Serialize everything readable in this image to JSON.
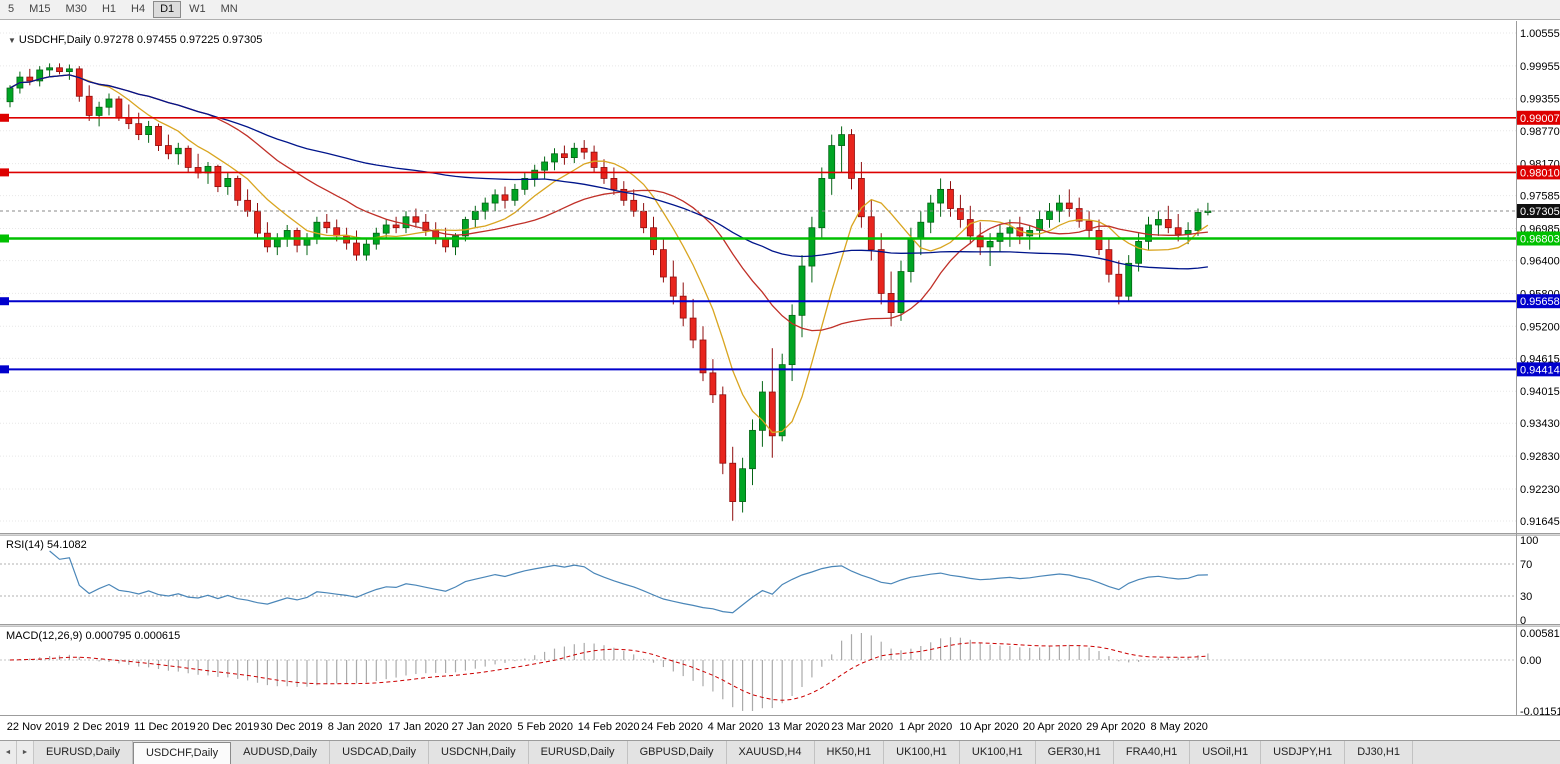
{
  "toolbar": {
    "timeframes": [
      "5",
      "M15",
      "M30",
      "H1",
      "H4",
      "D1",
      "W1",
      "MN"
    ],
    "active": "D1"
  },
  "icons": {
    "title_arrow": "▼",
    "tab_scroll_left": "◄",
    "tab_scroll_right": "►"
  },
  "chart_data": {
    "type": "candlestick",
    "symbol_title": "USDCHF,Daily",
    "ohlc_text": "0.97278 0.97455 0.97225 0.97305",
    "price_ticks": [
      "1.00555",
      "0.99955",
      "0.99355",
      "0.98770",
      "0.98170",
      "0.97585",
      "0.96985",
      "0.96400",
      "0.95800",
      "0.95200",
      "0.94615",
      "0.94015",
      "0.93430",
      "0.92830",
      "0.92230",
      "0.91645"
    ],
    "colors": {
      "up": "#00a524",
      "up_stroke": "#046414",
      "down": "#e8251d",
      "down_stroke": "#8f0e0e",
      "grid": "#e7e7e7"
    },
    "hlines": [
      {
        "value": 0.99007,
        "label": "0.99007",
        "color": "#dd0000",
        "width": 1.6
      },
      {
        "value": 0.9801,
        "label": "0.98010",
        "color": "#dd0000",
        "width": 1.6
      },
      {
        "value": 0.96803,
        "label": "0.96803",
        "color": "#00c000",
        "width": 2.4
      },
      {
        "value": 0.95658,
        "label": "0.95658",
        "color": "#0000cc",
        "width": 2
      },
      {
        "value": 0.94414,
        "label": "0.94414",
        "color": "#0000cc",
        "width": 2
      }
    ],
    "current_price": {
      "value": 0.97305,
      "label": "0.97305",
      "color": "#101010"
    },
    "moving_averages": [
      {
        "period": 8,
        "color": "#d9a520"
      },
      {
        "period": 21,
        "color": "#c03028"
      },
      {
        "period": 55,
        "color": "#00158b"
      }
    ],
    "candles": [
      [
        0.993,
        0.996,
        0.992,
        0.9955
      ],
      [
        0.9955,
        0.9985,
        0.9945,
        0.9975
      ],
      [
        0.9975,
        0.999,
        0.996,
        0.9968
      ],
      [
        0.9968,
        0.9995,
        0.9958,
        0.9988
      ],
      [
        0.9988,
        1.0,
        0.9975,
        0.9992
      ],
      [
        0.9992,
        1.0,
        0.998,
        0.9985
      ],
      [
        0.9985,
        0.9998,
        0.997,
        0.999
      ],
      [
        0.999,
        0.9995,
        0.993,
        0.994
      ],
      [
        0.994,
        0.996,
        0.9895,
        0.9905
      ],
      [
        0.9905,
        0.993,
        0.9885,
        0.992
      ],
      [
        0.992,
        0.9945,
        0.9905,
        0.9935
      ],
      [
        0.9935,
        0.994,
        0.9895,
        0.99
      ],
      [
        0.99,
        0.9925,
        0.988,
        0.989
      ],
      [
        0.989,
        0.991,
        0.986,
        0.987
      ],
      [
        0.987,
        0.9895,
        0.9855,
        0.9885
      ],
      [
        0.9885,
        0.989,
        0.984,
        0.985
      ],
      [
        0.985,
        0.987,
        0.9825,
        0.9835
      ],
      [
        0.9835,
        0.9855,
        0.9815,
        0.9845
      ],
      [
        0.9845,
        0.985,
        0.98,
        0.981
      ],
      [
        0.981,
        0.9835,
        0.979,
        0.98
      ],
      [
        0.98,
        0.982,
        0.978,
        0.9812
      ],
      [
        0.9812,
        0.9815,
        0.9765,
        0.9775
      ],
      [
        0.9775,
        0.98,
        0.976,
        0.979
      ],
      [
        0.979,
        0.9795,
        0.974,
        0.975
      ],
      [
        0.975,
        0.977,
        0.972,
        0.973
      ],
      [
        0.973,
        0.9745,
        0.968,
        0.969
      ],
      [
        0.969,
        0.971,
        0.9655,
        0.9665
      ],
      [
        0.9665,
        0.969,
        0.965,
        0.968
      ],
      [
        0.968,
        0.9705,
        0.9665,
        0.9695
      ],
      [
        0.9695,
        0.97,
        0.9655,
        0.9668
      ],
      [
        0.9668,
        0.969,
        0.965,
        0.968
      ],
      [
        0.968,
        0.972,
        0.967,
        0.971
      ],
      [
        0.971,
        0.9725,
        0.969,
        0.97
      ],
      [
        0.97,
        0.9715,
        0.9675,
        0.9685
      ],
      [
        0.9685,
        0.97,
        0.966,
        0.9672
      ],
      [
        0.9672,
        0.9695,
        0.964,
        0.965
      ],
      [
        0.965,
        0.968,
        0.964,
        0.967
      ],
      [
        0.967,
        0.97,
        0.966,
        0.969
      ],
      [
        0.969,
        0.9715,
        0.968,
        0.9705
      ],
      [
        0.9705,
        0.972,
        0.969,
        0.97
      ],
      [
        0.97,
        0.973,
        0.969,
        0.972
      ],
      [
        0.972,
        0.9735,
        0.97,
        0.971
      ],
      [
        0.971,
        0.9725,
        0.9685,
        0.9695
      ],
      [
        0.9695,
        0.971,
        0.967,
        0.968
      ],
      [
        0.968,
        0.97,
        0.9655,
        0.9665
      ],
      [
        0.9665,
        0.969,
        0.965,
        0.9685
      ],
      [
        0.9685,
        0.972,
        0.9675,
        0.9715
      ],
      [
        0.9715,
        0.974,
        0.97,
        0.973
      ],
      [
        0.973,
        0.9755,
        0.9715,
        0.9745
      ],
      [
        0.9745,
        0.977,
        0.973,
        0.976
      ],
      [
        0.976,
        0.9775,
        0.9735,
        0.975
      ],
      [
        0.975,
        0.978,
        0.974,
        0.977
      ],
      [
        0.977,
        0.98,
        0.976,
        0.979
      ],
      [
        0.979,
        0.9815,
        0.9775,
        0.9805
      ],
      [
        0.9805,
        0.983,
        0.979,
        0.982
      ],
      [
        0.982,
        0.9845,
        0.9805,
        0.9835
      ],
      [
        0.9835,
        0.985,
        0.9815,
        0.9828
      ],
      [
        0.9828,
        0.9855,
        0.9818,
        0.9845
      ],
      [
        0.9845,
        0.986,
        0.9825,
        0.9838
      ],
      [
        0.9838,
        0.985,
        0.98,
        0.981
      ],
      [
        0.981,
        0.9825,
        0.978,
        0.979
      ],
      [
        0.979,
        0.981,
        0.976,
        0.977
      ],
      [
        0.977,
        0.9785,
        0.974,
        0.975
      ],
      [
        0.975,
        0.977,
        0.972,
        0.973
      ],
      [
        0.973,
        0.9745,
        0.969,
        0.97
      ],
      [
        0.97,
        0.972,
        0.965,
        0.966
      ],
      [
        0.966,
        0.968,
        0.96,
        0.961
      ],
      [
        0.961,
        0.964,
        0.956,
        0.9575
      ],
      [
        0.9575,
        0.96,
        0.952,
        0.9535
      ],
      [
        0.9535,
        0.957,
        0.948,
        0.9495
      ],
      [
        0.9495,
        0.952,
        0.942,
        0.9435
      ],
      [
        0.9435,
        0.946,
        0.938,
        0.9395
      ],
      [
        0.9395,
        0.941,
        0.925,
        0.927
      ],
      [
        0.927,
        0.93,
        0.9165,
        0.92
      ],
      [
        0.92,
        0.928,
        0.918,
        0.926
      ],
      [
        0.926,
        0.935,
        0.923,
        0.933
      ],
      [
        0.933,
        0.942,
        0.93,
        0.94
      ],
      [
        0.94,
        0.948,
        0.928,
        0.932
      ],
      [
        0.932,
        0.947,
        0.931,
        0.945
      ],
      [
        0.945,
        0.956,
        0.942,
        0.954
      ],
      [
        0.954,
        0.965,
        0.95,
        0.963
      ],
      [
        0.963,
        0.972,
        0.96,
        0.97
      ],
      [
        0.97,
        0.981,
        0.968,
        0.979
      ],
      [
        0.979,
        0.987,
        0.976,
        0.985
      ],
      [
        0.985,
        0.9885,
        0.98,
        0.987
      ],
      [
        0.987,
        0.988,
        0.977,
        0.979
      ],
      [
        0.979,
        0.982,
        0.97,
        0.972
      ],
      [
        0.972,
        0.975,
        0.964,
        0.966
      ],
      [
        0.966,
        0.969,
        0.956,
        0.958
      ],
      [
        0.958,
        0.962,
        0.952,
        0.9545
      ],
      [
        0.9545,
        0.964,
        0.953,
        0.962
      ],
      [
        0.962,
        0.97,
        0.96,
        0.968
      ],
      [
        0.968,
        0.973,
        0.965,
        0.971
      ],
      [
        0.971,
        0.976,
        0.969,
        0.9745
      ],
      [
        0.9745,
        0.979,
        0.972,
        0.977
      ],
      [
        0.977,
        0.9785,
        0.972,
        0.9735
      ],
      [
        0.9735,
        0.976,
        0.97,
        0.9715
      ],
      [
        0.9715,
        0.974,
        0.967,
        0.9685
      ],
      [
        0.9685,
        0.971,
        0.965,
        0.9665
      ],
      [
        0.9665,
        0.969,
        0.963,
        0.9675
      ],
      [
        0.9675,
        0.9705,
        0.9655,
        0.969
      ],
      [
        0.969,
        0.9715,
        0.9665,
        0.97
      ],
      [
        0.97,
        0.972,
        0.967,
        0.9685
      ],
      [
        0.9685,
        0.9705,
        0.966,
        0.9695
      ],
      [
        0.9695,
        0.973,
        0.968,
        0.9715
      ],
      [
        0.9715,
        0.9745,
        0.97,
        0.973
      ],
      [
        0.973,
        0.976,
        0.971,
        0.9745
      ],
      [
        0.9745,
        0.977,
        0.972,
        0.9735
      ],
      [
        0.9735,
        0.9755,
        0.97,
        0.9712
      ],
      [
        0.9712,
        0.973,
        0.968,
        0.9695
      ],
      [
        0.9695,
        0.9715,
        0.965,
        0.966
      ],
      [
        0.966,
        0.968,
        0.96,
        0.9615
      ],
      [
        0.9615,
        0.964,
        0.956,
        0.9575
      ],
      [
        0.9575,
        0.965,
        0.9565,
        0.9635
      ],
      [
        0.9635,
        0.969,
        0.962,
        0.9675
      ],
      [
        0.9675,
        0.972,
        0.966,
        0.9705
      ],
      [
        0.9705,
        0.973,
        0.9685,
        0.9715
      ],
      [
        0.9715,
        0.974,
        0.969,
        0.97
      ],
      [
        0.97,
        0.9725,
        0.9675,
        0.9688
      ],
      [
        0.9688,
        0.971,
        0.967,
        0.9695
      ],
      [
        0.9695,
        0.9735,
        0.9685,
        0.97278
      ],
      [
        0.97278,
        0.97455,
        0.97225,
        0.97305
      ]
    ],
    "rsi": {
      "label": "RSI(14) 54.1082",
      "period": 14,
      "color": "#4a86b8",
      "levels": [
        "100",
        "70",
        "30",
        "0"
      ]
    },
    "macd": {
      "label": "MACD(12,26,9) 0.000795 0.000615",
      "fast": 12,
      "slow": 26,
      "signal": 9,
      "axis_labels": [
        "0.005818",
        "0.00",
        "-0.011510"
      ],
      "hist_color": "#aaaaaa",
      "signal_color": "#cc0000"
    },
    "date_labels": [
      "22 Nov 2019",
      "2 Dec 2019",
      "11 Dec 2019",
      "20 Dec 2019",
      "30 Dec 2019",
      "8 Jan 2020",
      "17 Jan 2020",
      "27 Jan 2020",
      "5 Feb 2020",
      "14 Feb 2020",
      "24 Feb 2020",
      "4 Mar 2020",
      "13 Mar 2020",
      "23 Mar 2020",
      "1 Apr 2020",
      "10 Apr 2020",
      "20 Apr 2020",
      "29 Apr 2020",
      "8 May 2020"
    ]
  },
  "tabs": {
    "active_index": 1,
    "items": [
      "EURUSD,Daily",
      "USDCHF,Daily",
      "AUDUSD,Daily",
      "USDCAD,Daily",
      "USDCNH,Daily",
      "EURUSD,Daily",
      "GBPUSD,Daily",
      "XAUUSD,H4",
      "HK50,H1",
      "UK100,H1",
      "UK100,H1",
      "GER30,H1",
      "FRA40,H1",
      "USOil,H1",
      "USDJPY,H1",
      "DJ30,H1"
    ]
  }
}
